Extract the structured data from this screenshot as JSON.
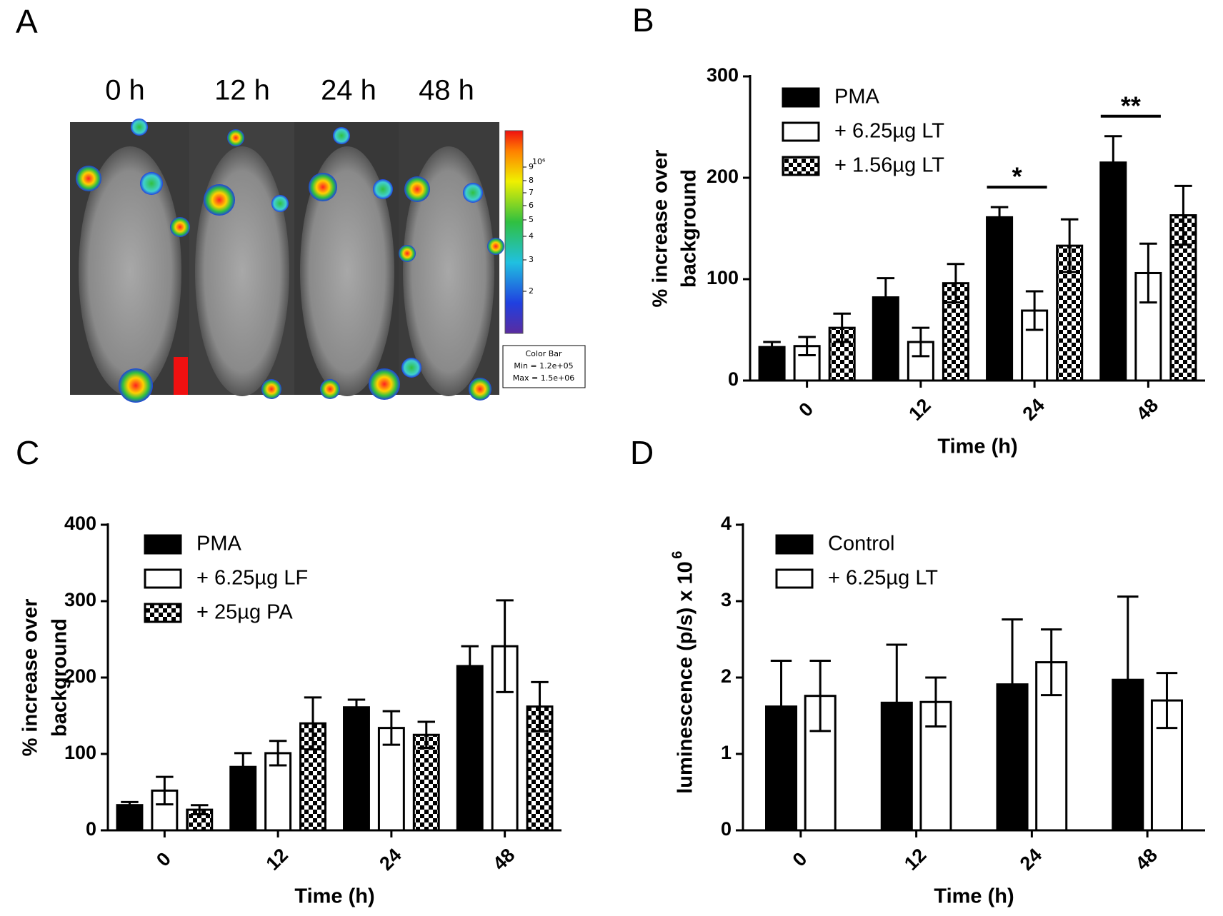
{
  "image_panel": {
    "label": "A",
    "time_labels": [
      "0 h",
      "12 h",
      "24 h",
      "48 h"
    ],
    "colorbar_unit": "10⁶",
    "colorbar_ticks": [
      "9",
      "8",
      "7",
      "6",
      "5",
      "4",
      "3",
      "2"
    ],
    "colorbar_box": [
      "Color Bar",
      "Min = 1.2e+05",
      "Max = 1.5e+06"
    ]
  },
  "chart_data": [
    {
      "type": "bar",
      "label": "B",
      "y_label": [
        "% increase over",
        "background"
      ],
      "x_label": "Time (h)",
      "categories": [
        "0",
        "12",
        "24",
        "48"
      ],
      "ylim": [
        0,
        300
      ],
      "yticks": [
        0,
        100,
        200,
        300
      ],
      "series": [
        {
          "name": "PMA",
          "color": "#000000",
          "fill": "solid",
          "values": [
            33,
            82,
            161,
            215
          ],
          "errors": [
            5,
            19,
            10,
            26
          ]
        },
        {
          "name": "+ 6.25µg LT",
          "color": "#000000",
          "fill": "open",
          "values": [
            34,
            38,
            69,
            106
          ],
          "errors": [
            9,
            14,
            19,
            29
          ]
        },
        {
          "name": "+ 1.56µg LT",
          "color": "#000000",
          "fill": "checker",
          "values": [
            52,
            96,
            133,
            163
          ],
          "errors": [
            14,
            19,
            26,
            29
          ]
        }
      ],
      "annotations": [
        {
          "text": "*",
          "category": "24"
        },
        {
          "text": "**",
          "category": "48"
        }
      ]
    },
    {
      "type": "bar",
      "label": "C",
      "y_label": [
        "% increase over",
        "background"
      ],
      "x_label": "Time (h)",
      "categories": [
        "0",
        "12",
        "24",
        "48"
      ],
      "ylim": [
        0,
        400
      ],
      "yticks": [
        0,
        100,
        200,
        300,
        400
      ],
      "series": [
        {
          "name": "PMA",
          "color": "#000000",
          "fill": "solid",
          "values": [
            33,
            83,
            161,
            215
          ],
          "errors": [
            4,
            18,
            10,
            26
          ]
        },
        {
          "name": "+ 6.25µg LF",
          "color": "#000000",
          "fill": "open",
          "values": [
            52,
            101,
            134,
            241
          ],
          "errors": [
            18,
            16,
            22,
            60
          ]
        },
        {
          "name": "+ 25µg PA",
          "color": "#000000",
          "fill": "checker",
          "values": [
            27,
            140,
            125,
            162
          ],
          "errors": [
            6,
            34,
            17,
            32
          ]
        }
      ]
    },
    {
      "type": "bar",
      "label": "D",
      "y_label": [
        "luminescence (p/s) x 10"
      ],
      "y_label_superscript": "6",
      "x_label": "Time (h)",
      "categories": [
        "0",
        "12",
        "24",
        "48"
      ],
      "ylim": [
        0,
        4
      ],
      "yticks": [
        0,
        1,
        2,
        3,
        4
      ],
      "series": [
        {
          "name": "Control",
          "color": "#000000",
          "fill": "solid",
          "values": [
            1.62,
            1.67,
            1.91,
            1.97
          ],
          "errors": [
            0.6,
            0.76,
            0.85,
            1.09
          ]
        },
        {
          "name": "+ 6.25µg LT",
          "color": "#000000",
          "fill": "open",
          "values": [
            1.76,
            1.68,
            2.2,
            1.7
          ],
          "errors": [
            0.46,
            0.32,
            0.43,
            0.36
          ]
        }
      ]
    }
  ]
}
